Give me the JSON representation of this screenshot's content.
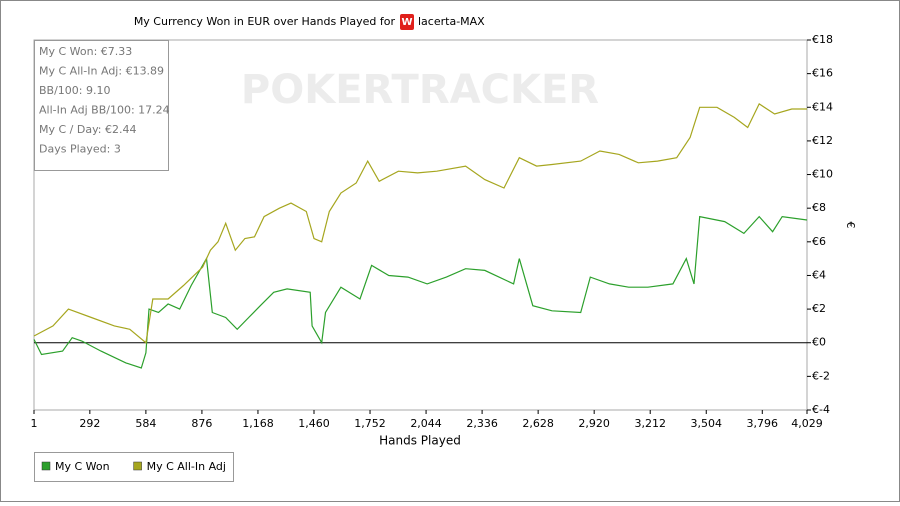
{
  "chart_data": {
    "type": "line",
    "title": "My Currency Won in EUR over Hands Played for",
    "player": "lacerta-MAX",
    "watermark": "POKERTRACKER",
    "xlabel": "Hands Played",
    "ylabel": "€",
    "xlim": [
      1,
      4029
    ],
    "xticks": [
      1,
      292,
      584,
      876,
      {
        "value": 1168,
        "label": "1,168"
      },
      {
        "value": 1460,
        "label": "1,460"
      },
      {
        "value": 1752,
        "label": "1,752"
      },
      {
        "value": 2044,
        "label": "2,044"
      },
      {
        "value": 2336,
        "label": "2,336"
      },
      {
        "value": 2628,
        "label": "2,628"
      },
      {
        "value": 2920,
        "label": "2,920"
      },
      {
        "value": 3212,
        "label": "3,212"
      },
      {
        "value": 3504,
        "label": "3,504"
      },
      {
        "value": 3796,
        "label": "3,796"
      },
      {
        "value": 4029,
        "label": "4,029"
      }
    ],
    "ylim": [
      -4,
      18
    ],
    "yticks": [
      {
        "value": -4,
        "label": "€-4"
      },
      {
        "value": -2,
        "label": "€-2"
      },
      {
        "value": 0,
        "label": "€0"
      },
      {
        "value": 2,
        "label": "€2"
      },
      {
        "value": 4,
        "label": "€4"
      },
      {
        "value": 6,
        "label": "€6"
      },
      {
        "value": 8,
        "label": "€8"
      },
      {
        "value": 10,
        "label": "€10"
      },
      {
        "value": 12,
        "label": "€12"
      },
      {
        "value": 14,
        "label": "€14"
      },
      {
        "value": 16,
        "label": "€16"
      },
      {
        "value": 18,
        "label": "€18"
      }
    ],
    "stats": [
      "My C Won: €7.33",
      "My C All-In Adj: €13.89",
      "BB/100: 9.10",
      "All-In Adj BB/100: 17.24",
      "My C / Day: €2.44",
      "Days Played: 3"
    ],
    "series": [
      {
        "name": "My C Won",
        "color": "#2ca02c",
        "x": [
          1,
          40,
          150,
          200,
          250,
          350,
          480,
          560,
          584,
          600,
          650,
          700,
          760,
          820,
          900,
          930,
          1000,
          1060,
          1120,
          1180,
          1250,
          1320,
          1440,
          1450,
          1500,
          1520,
          1600,
          1700,
          1760,
          1850,
          1950,
          2050,
          2150,
          2250,
          2350,
          2500,
          2530,
          2600,
          2700,
          2850,
          2900,
          3000,
          3100,
          3200,
          3330,
          3400,
          3440,
          3470,
          3600,
          3700,
          3780,
          3850,
          3900,
          4029
        ],
        "values": [
          0.2,
          -0.7,
          -0.5,
          0.3,
          0.1,
          -0.5,
          -1.2,
          -1.5,
          -0.6,
          2,
          1.8,
          2.3,
          2.0,
          3.4,
          5.0,
          1.8,
          1.5,
          0.8,
          1.5,
          2.2,
          3.0,
          3.2,
          3.0,
          1.0,
          0.0,
          1.8,
          3.3,
          2.6,
          4.6,
          4.0,
          3.9,
          3.5,
          3.9,
          4.4,
          4.3,
          3.5,
          5.0,
          2.2,
          1.9,
          1.8,
          3.9,
          3.5,
          3.3,
          3.3,
          3.5,
          5.0,
          3.5,
          7.5,
          7.2,
          6.5,
          7.5,
          6.6,
          7.5,
          7.3
        ]
      },
      {
        "name": "My C All-In Adj",
        "color": "#a6a61f",
        "x": [
          1,
          100,
          180,
          300,
          420,
          500,
          584,
          620,
          700,
          780,
          880,
          920,
          960,
          1000,
          1050,
          1100,
          1150,
          1200,
          1280,
          1340,
          1420,
          1460,
          1500,
          1540,
          1600,
          1680,
          1740,
          1800,
          1900,
          2000,
          2100,
          2250,
          2350,
          2450,
          2530,
          2620,
          2700,
          2850,
          2950,
          3050,
          3150,
          3250,
          3350,
          3420,
          3470,
          3560,
          3650,
          3720,
          3780,
          3860,
          3950,
          4029
        ],
        "values": [
          0.4,
          1.0,
          2.0,
          1.5,
          1.0,
          0.8,
          0,
          2.6,
          2.6,
          3.4,
          4.5,
          5.5,
          6.0,
          7.1,
          5.5,
          6.2,
          6.3,
          7.5,
          8.0,
          8.3,
          7.8,
          6.2,
          6.0,
          7.8,
          8.9,
          9.5,
          10.8,
          9.6,
          10.2,
          10.1,
          10.2,
          10.5,
          9.7,
          9.2,
          11.0,
          10.5,
          10.6,
          10.8,
          11.4,
          11.2,
          10.7,
          10.8,
          11.0,
          12.2,
          14.0,
          14.0,
          13.4,
          12.8,
          14.2,
          13.6,
          13.9,
          13.9
        ]
      }
    ]
  }
}
